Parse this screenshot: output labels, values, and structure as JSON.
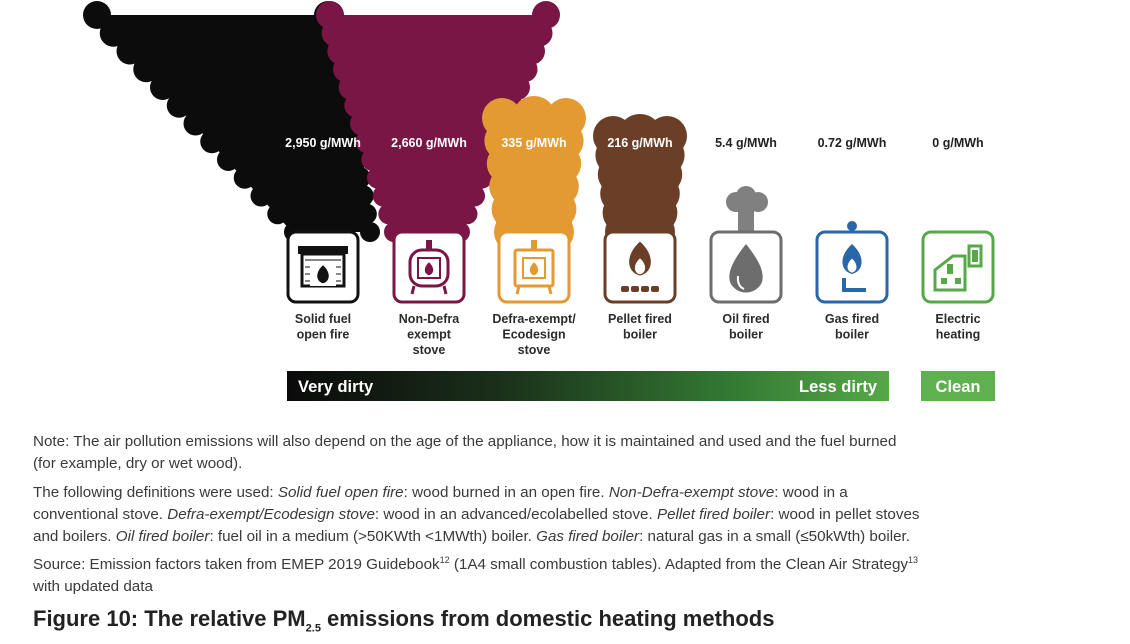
{
  "chart_data": {
    "type": "bar",
    "categories": [
      "Solid fuel open fire",
      "Non-Defra exempt stove",
      "Defra-exempt/ Ecodesign stove",
      "Pellet fired boiler",
      "Oil fired boiler",
      "Gas fired boiler",
      "Electric heating"
    ],
    "values": [
      2950,
      2660,
      335,
      216,
      5.4,
      0.72,
      0
    ],
    "value_labels": [
      "2,950 g/MWh",
      "2,660 g/MWh",
      "335 g/MWh",
      "216 g/MWh",
      "5.4 g/MWh",
      "0.72 g/MWh",
      "0 g/MWh"
    ],
    "label_lines": [
      [
        "Solid fuel",
        "open fire"
      ],
      [
        "Non-Defra",
        "exempt",
        "stove"
      ],
      [
        "Defra-exempt/",
        "Ecodesign",
        "stove"
      ],
      [
        "Pellet fired",
        "boiler"
      ],
      [
        "Oil fired",
        "boiler"
      ],
      [
        "Gas fired",
        "boiler"
      ],
      [
        "Electric",
        "heating"
      ]
    ],
    "icons": [
      "open-fire-icon",
      "stove-icon",
      "ecodesign-stove-icon",
      "pellet-flame-icon",
      "oil-drop-icon",
      "gas-flame-icon",
      "electric-socket-icon"
    ],
    "colors": [
      "#111111",
      "#7a1645",
      "#e39a33",
      "#6b3f27",
      "#6d6d6d",
      "#2a66a8",
      "#56a848"
    ],
    "smoke_colors": [
      "#0c0c0c",
      "#7a1645",
      "#e39a33",
      "#6b3f27",
      "#808080",
      null,
      null
    ],
    "scale": {
      "labels": [
        "Very dirty",
        "Less dirty",
        "Clean"
      ],
      "gradient_colors": [
        "#0a0a0a",
        "#1d3b1d",
        "#3c8a3c",
        "#56a848"
      ],
      "clean_color": "#5fb04f"
    }
  },
  "note": {
    "line1": "Note: The air pollution emissions will also depend on the age of the appliance, how it is maintained and used and the fuel burned",
    "line2": "(for example, dry or wet wood)."
  },
  "definitions": {
    "intro": "The following definitions were used: ",
    "items": [
      {
        "term": "Solid fuel open fire",
        "desc": ": wood burned in an open fire. "
      },
      {
        "term": "Non-Defra-exempt stove",
        "desc": ": wood in a"
      },
      {
        "pre": "conventional stove. ",
        "term": "Defra-exempt/Ecodesign stove",
        "desc": ": wood in an advanced/ecolabelled stove. "
      },
      {
        "term": "Pellet fired boiler",
        "desc": ": wood in pellet stoves"
      },
      {
        "pre": "and boilers. ",
        "term": "Oil fired boiler",
        "desc": ": fuel oil in a medium (>50KWth <1MWth) boiler. "
      },
      {
        "term": "Gas fired boiler",
        "desc": ": natural gas in a small (≤50kWth) boiler."
      }
    ]
  },
  "source": {
    "text_a": "Source: Emission factors taken from EMEP 2019 Guidebook",
    "ref_a": "12",
    "text_b": " (1A4 small combustion tables). Adapted from the Clean Air Strategy",
    "ref_b": "13",
    "text_c": "with updated data"
  },
  "figure_title": {
    "prefix": "Figure 10: The relative PM",
    "subscript": "2.5",
    "suffix": " emissions from domestic heating methods"
  }
}
